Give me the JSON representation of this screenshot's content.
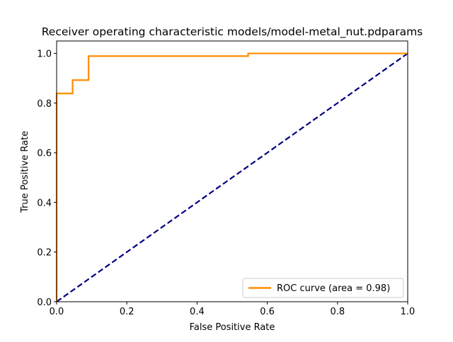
{
  "chart_data": {
    "type": "line",
    "title": "Receiver operating characteristic models/model-metal_nut.pdparams",
    "xlabel": "False Positive Rate",
    "ylabel": "True Positive Rate",
    "xlim": [
      0.0,
      1.0
    ],
    "ylim": [
      0.0,
      1.05
    ],
    "x_ticks": [
      "0.0",
      "0.2",
      "0.4",
      "0.6",
      "0.8",
      "1.0"
    ],
    "y_ticks": [
      "0.0",
      "0.2",
      "0.4",
      "0.6",
      "0.8",
      "1.0"
    ],
    "grid": false,
    "legend_position": "lower-right",
    "series": [
      {
        "name": "ROC curve (area = 0.98)",
        "color": "#ff8c00",
        "style": "solid",
        "x": [
          0.0,
          0.0,
          0.0455,
          0.0455,
          0.0909,
          0.0909,
          0.5455,
          0.5455,
          1.0
        ],
        "y": [
          0.0,
          0.8387,
          0.8387,
          0.8925,
          0.8925,
          0.9892,
          0.9892,
          1.0,
          1.0
        ]
      },
      {
        "color": "#000080",
        "style": "dashed",
        "x": [
          0.0,
          1.0
        ],
        "y": [
          0.0,
          1.0
        ]
      }
    ]
  }
}
